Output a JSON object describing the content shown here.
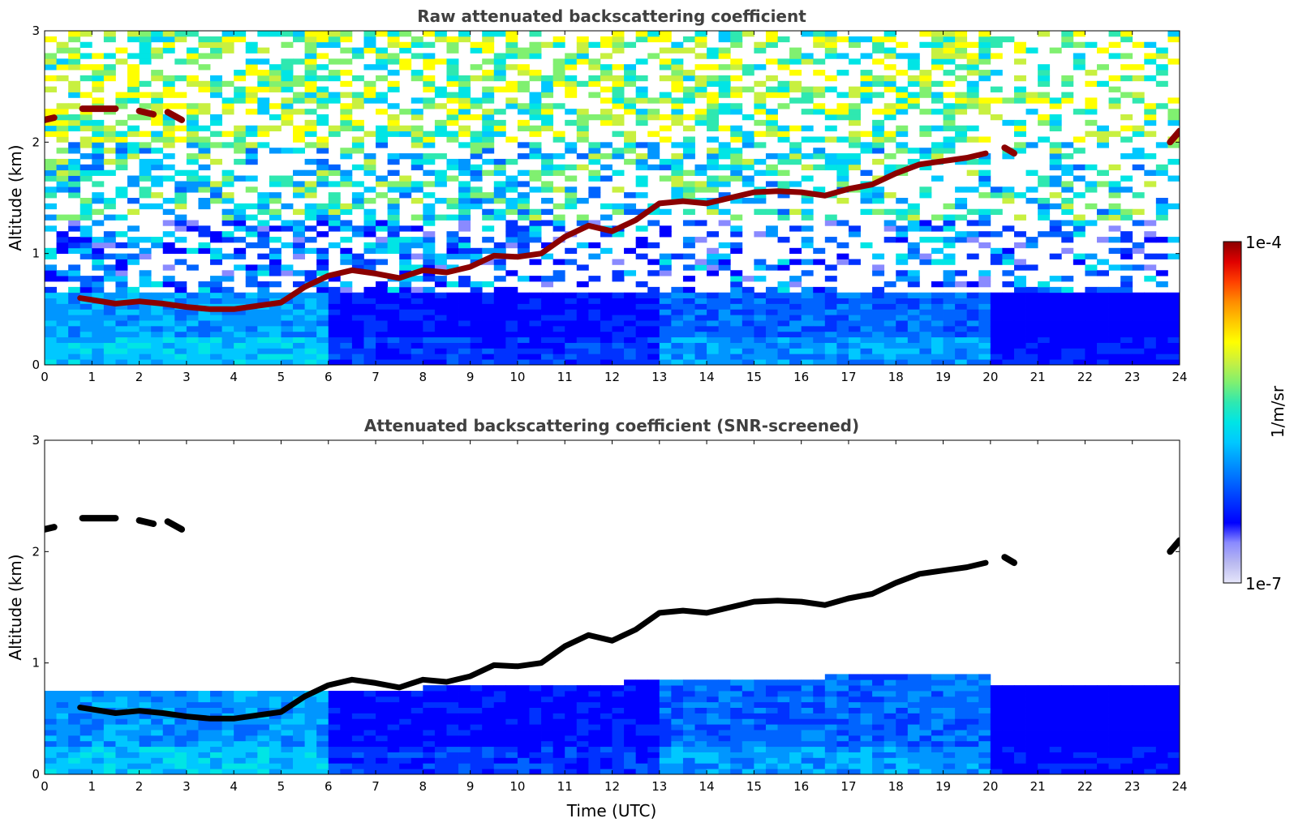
{
  "colors": {
    "cloud_layer": "#8b0000",
    "cloud_edge_screened": "#000000",
    "title_text": "#404040",
    "background": "#ffffff"
  },
  "colormap": [
    "#e6e6fa",
    "#b9b9f0",
    "#8a8aff",
    "#0000ff",
    "#0032ff",
    "#0064ff",
    "#0096ff",
    "#00c8ff",
    "#00e5e5",
    "#2fe8b0",
    "#80f070",
    "#c8f040",
    "#ffff00",
    "#ffc800",
    "#ff8c00",
    "#ff4000",
    "#e00000",
    "#8b0000"
  ],
  "colorbar": {
    "label": "1/m/sr",
    "max_label": "1e-4",
    "min_label": "1e-7",
    "range": [
      1e-07,
      0.0001
    ],
    "scale": "log"
  },
  "chart_data": [
    {
      "type": "heatmap",
      "title": "Raw attenuated backscattering coefficient",
      "xlabel": "",
      "ylabel": "Altitude (km)",
      "xlim": [
        0,
        24
      ],
      "ylim": [
        0,
        3
      ],
      "xticks": [
        "0",
        "1",
        "2",
        "3",
        "4",
        "5",
        "6",
        "7",
        "8",
        "9",
        "10",
        "11",
        "12",
        "13",
        "14",
        "15",
        "16",
        "17",
        "18",
        "19",
        "20",
        "21",
        "22",
        "23",
        "24"
      ],
      "yticks": [
        "0",
        "1",
        "2",
        "3"
      ],
      "screened": false,
      "cloud_layer": {
        "time_utc": [
          0.75,
          1.5,
          2.0,
          2.5,
          3.0,
          3.5,
          4.0,
          4.5,
          5.0,
          5.5,
          6.0,
          6.5,
          7.0,
          7.5,
          8.0,
          8.5,
          9.0,
          9.5,
          10.0,
          10.5,
          11.0,
          11.5,
          12.0,
          12.5,
          13.0,
          13.5,
          14.0,
          14.5,
          15.0,
          15.5,
          16.0,
          16.5,
          17.0,
          17.5,
          18.0,
          18.5,
          19.0,
          19.5,
          19.9
        ],
        "altitude_km": [
          0.6,
          0.55,
          0.57,
          0.55,
          0.52,
          0.5,
          0.5,
          0.53,
          0.56,
          0.7,
          0.8,
          0.85,
          0.82,
          0.78,
          0.85,
          0.83,
          0.88,
          0.98,
          0.97,
          1.0,
          1.15,
          1.25,
          1.2,
          1.3,
          1.45,
          1.47,
          1.45,
          1.5,
          1.55,
          1.56,
          1.55,
          1.52,
          1.58,
          1.62,
          1.72,
          1.8,
          1.83,
          1.86,
          1.9
        ]
      },
      "upper_cloud": {
        "time_utc": [
          0.0,
          0.2,
          0.8,
          1.5,
          2.0,
          2.3,
          2.6,
          2.9,
          20.3,
          20.5,
          23.8,
          24.0
        ],
        "altitude_km": [
          2.2,
          2.22,
          2.3,
          2.3,
          2.28,
          2.25,
          2.27,
          2.2,
          1.95,
          1.9,
          2.0,
          2.1
        ]
      }
    },
    {
      "type": "heatmap",
      "title": "Attenuated backscattering coefficient (SNR-screened)",
      "xlabel": "Time (UTC)",
      "ylabel": "Altitude (km)",
      "xlim": [
        0,
        24
      ],
      "ylim": [
        0,
        3
      ],
      "xticks": [
        "0",
        "1",
        "2",
        "3",
        "4",
        "5",
        "6",
        "7",
        "8",
        "9",
        "10",
        "11",
        "12",
        "13",
        "14",
        "15",
        "16",
        "17",
        "18",
        "19",
        "20",
        "21",
        "22",
        "23",
        "24"
      ],
      "yticks": [
        "0",
        "1",
        "2",
        "3"
      ],
      "screened": true
    }
  ]
}
